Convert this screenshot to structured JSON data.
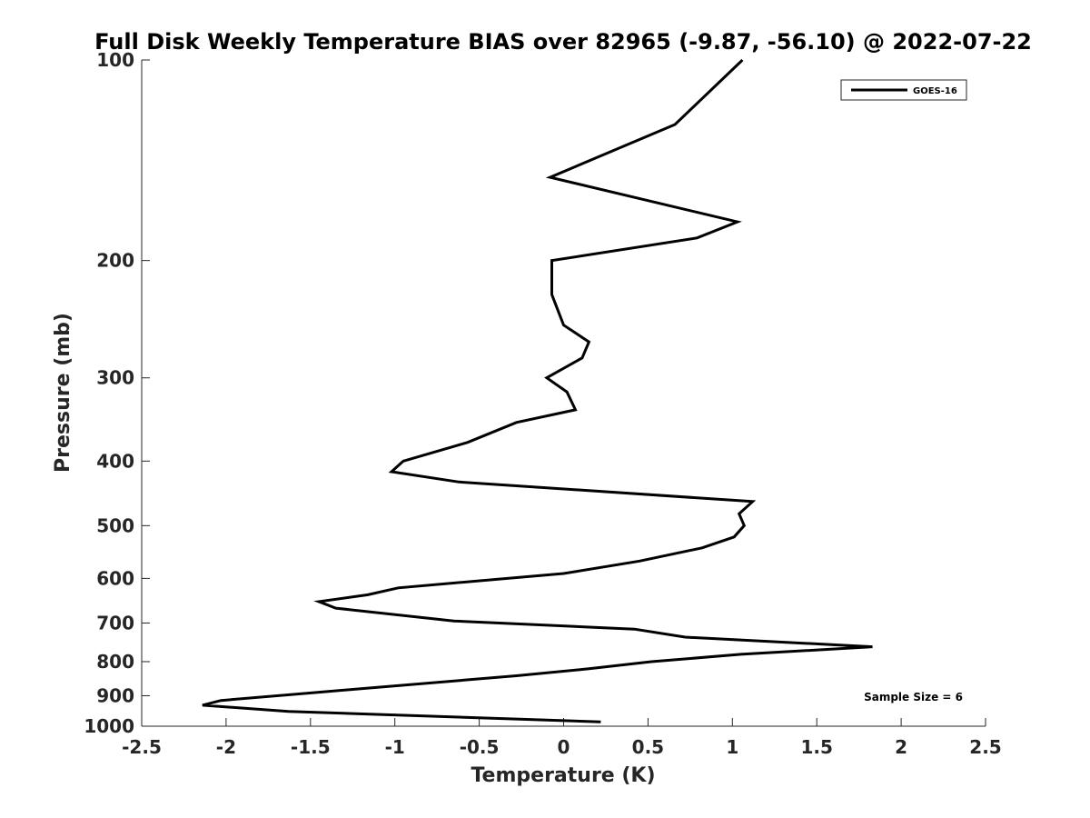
{
  "chart_data": {
    "type": "line",
    "title": "Full Disk Weekly Temperature BIAS over 82965 (-9.87, -56.10) @ 2022-07-22",
    "xlabel": "Temperature (K)",
    "ylabel": "Pressure (mb)",
    "xlim": [
      -2.5,
      2.5
    ],
    "ylim": [
      100,
      1000
    ],
    "yscale": "log",
    "y_reversed": true,
    "x_ticks": [
      -2.5,
      -2,
      -1.5,
      -1,
      -0.5,
      0,
      0.5,
      1,
      1.5,
      2,
      2.5
    ],
    "x_tick_labels": [
      "-2.5",
      "-2",
      "-1.5",
      "-1",
      "-0.5",
      "0",
      "0.5",
      "1",
      "1.5",
      "2",
      "2.5"
    ],
    "y_ticks": [
      100,
      200,
      300,
      400,
      500,
      600,
      700,
      800,
      900,
      1000
    ],
    "y_tick_labels": [
      "100",
      "200",
      "300",
      "400",
      "500",
      "600",
      "700",
      "800",
      "900",
      "1000"
    ],
    "grid": false,
    "legend_position": "top-right",
    "series": [
      {
        "name": "GOES-16",
        "color": "#000000",
        "points": [
          {
            "x": 1.06,
            "p": 100
          },
          {
            "x": 0.66,
            "p": 125
          },
          {
            "x": -0.08,
            "p": 150
          },
          {
            "x": 1.03,
            "p": 175
          },
          {
            "x": 0.79,
            "p": 185
          },
          {
            "x": -0.07,
            "p": 200
          },
          {
            "x": -0.07,
            "p": 225
          },
          {
            "x": 0.0,
            "p": 250
          },
          {
            "x": 0.15,
            "p": 265
          },
          {
            "x": 0.11,
            "p": 280
          },
          {
            "x": -0.1,
            "p": 300
          },
          {
            "x": 0.02,
            "p": 315
          },
          {
            "x": 0.07,
            "p": 335
          },
          {
            "x": -0.28,
            "p": 350
          },
          {
            "x": -0.57,
            "p": 375
          },
          {
            "x": -0.95,
            "p": 400
          },
          {
            "x": -1.02,
            "p": 415
          },
          {
            "x": -0.62,
            "p": 430
          },
          {
            "x": 1.12,
            "p": 460
          },
          {
            "x": 1.04,
            "p": 480
          },
          {
            "x": 1.07,
            "p": 500
          },
          {
            "x": 1.01,
            "p": 520
          },
          {
            "x": 0.82,
            "p": 540
          },
          {
            "x": 0.45,
            "p": 565
          },
          {
            "x": 0.0,
            "p": 590
          },
          {
            "x": -0.98,
            "p": 620
          },
          {
            "x": -1.16,
            "p": 635
          },
          {
            "x": -1.45,
            "p": 650
          },
          {
            "x": -1.35,
            "p": 665
          },
          {
            "x": -0.65,
            "p": 695
          },
          {
            "x": 0.42,
            "p": 715
          },
          {
            "x": 0.72,
            "p": 735
          },
          {
            "x": 1.83,
            "p": 760
          },
          {
            "x": 1.05,
            "p": 780
          },
          {
            "x": 0.52,
            "p": 800
          },
          {
            "x": 0.15,
            "p": 820
          },
          {
            "x": -0.28,
            "p": 840
          },
          {
            "x": -1.12,
            "p": 875
          },
          {
            "x": -2.03,
            "p": 915
          },
          {
            "x": -2.14,
            "p": 930
          },
          {
            "x": -1.63,
            "p": 950
          },
          {
            "x": 0.22,
            "p": 985
          }
        ]
      }
    ],
    "annotations": [
      {
        "text": "Sample Size = 6",
        "position": "bottom-right"
      }
    ]
  }
}
